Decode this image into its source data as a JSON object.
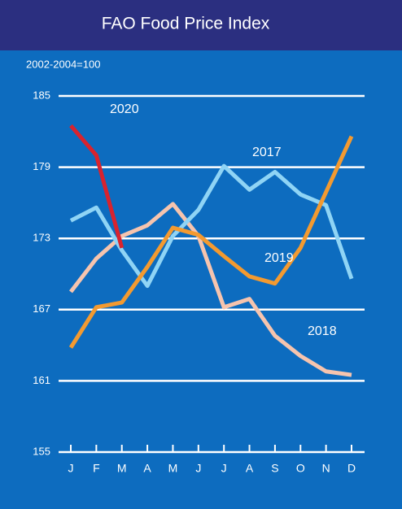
{
  "chart_data": {
    "type": "line",
    "title": "FAO Food Price Index",
    "y_axis_label": "2002-2004=100",
    "categories": [
      "J",
      "F",
      "M",
      "A",
      "M",
      "J",
      "J",
      "A",
      "S",
      "O",
      "N",
      "D"
    ],
    "series": [
      {
        "name": "2018",
        "color": "#f6c4ae",
        "values": [
          168.5,
          171.3,
          173.2,
          174.1,
          175.9,
          173.2,
          167.2,
          167.9,
          164.8,
          163.1,
          161.8,
          161.5
        ]
      },
      {
        "name": "2017",
        "color": "#8fd4f5",
        "values": [
          174.5,
          175.6,
          172.0,
          169.0,
          173.2,
          175.4,
          179.1,
          177.1,
          178.6,
          176.7,
          175.8,
          169.6
        ]
      },
      {
        "name": "2019",
        "color": "#f39a30",
        "values": [
          163.8,
          167.2,
          167.6,
          170.6,
          173.9,
          173.3,
          171.5,
          169.8,
          169.2,
          172.2,
          176.9,
          181.6
        ]
      },
      {
        "name": "2020",
        "color": "#d8232e",
        "values": [
          182.5,
          180.0,
          172.2,
          null,
          null,
          null,
          null,
          null,
          null,
          null,
          null,
          null
        ]
      }
    ],
    "ylim": [
      155,
      185
    ],
    "yticks": [
      155,
      161,
      167,
      173,
      179,
      185
    ],
    "grid": true
  }
}
